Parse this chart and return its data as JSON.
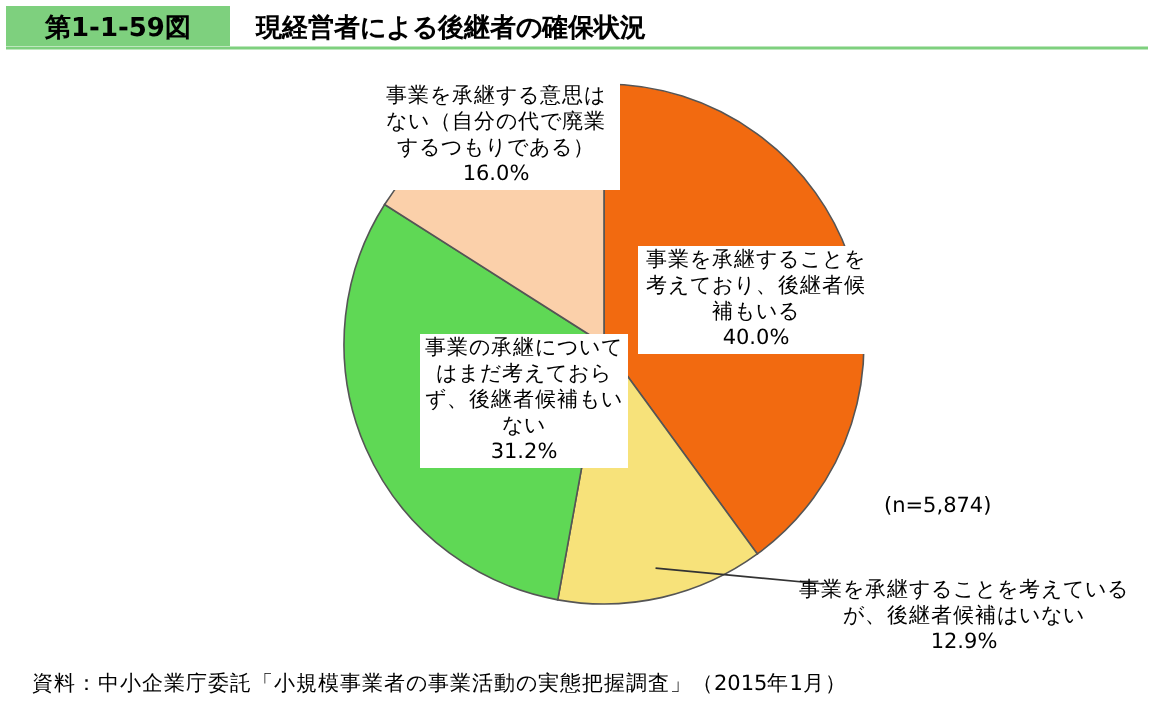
{
  "chart_data": {
    "type": "pie",
    "title": "第1-1-59図",
    "subtitle": "現経営者による後継者の確保状況",
    "categories": [
      "事業を承継することを考えており、後継者候補もいる",
      "事業を承継することを考えているが、後継者候補はいない",
      "事業の承継についてはまだ考えておらず、後継者候補もいない",
      "事業を承継する意思はない（自分の代で廃業するつもりである）"
    ],
    "values": [
      40.0,
      12.9,
      31.2,
      16.0
    ],
    "value_labels": [
      "40.0%",
      "12.9%",
      "31.2%",
      "16.0%"
    ],
    "colors": [
      "#f26a10",
      "#f7e27a",
      "#5fd855",
      "#fbd0aa"
    ],
    "annotations": [
      "(n=5,874)",
      "資料：中小企業庁委託「小規模事業者の事業活動の実態把握調査」（2015年1月）"
    ]
  }
}
